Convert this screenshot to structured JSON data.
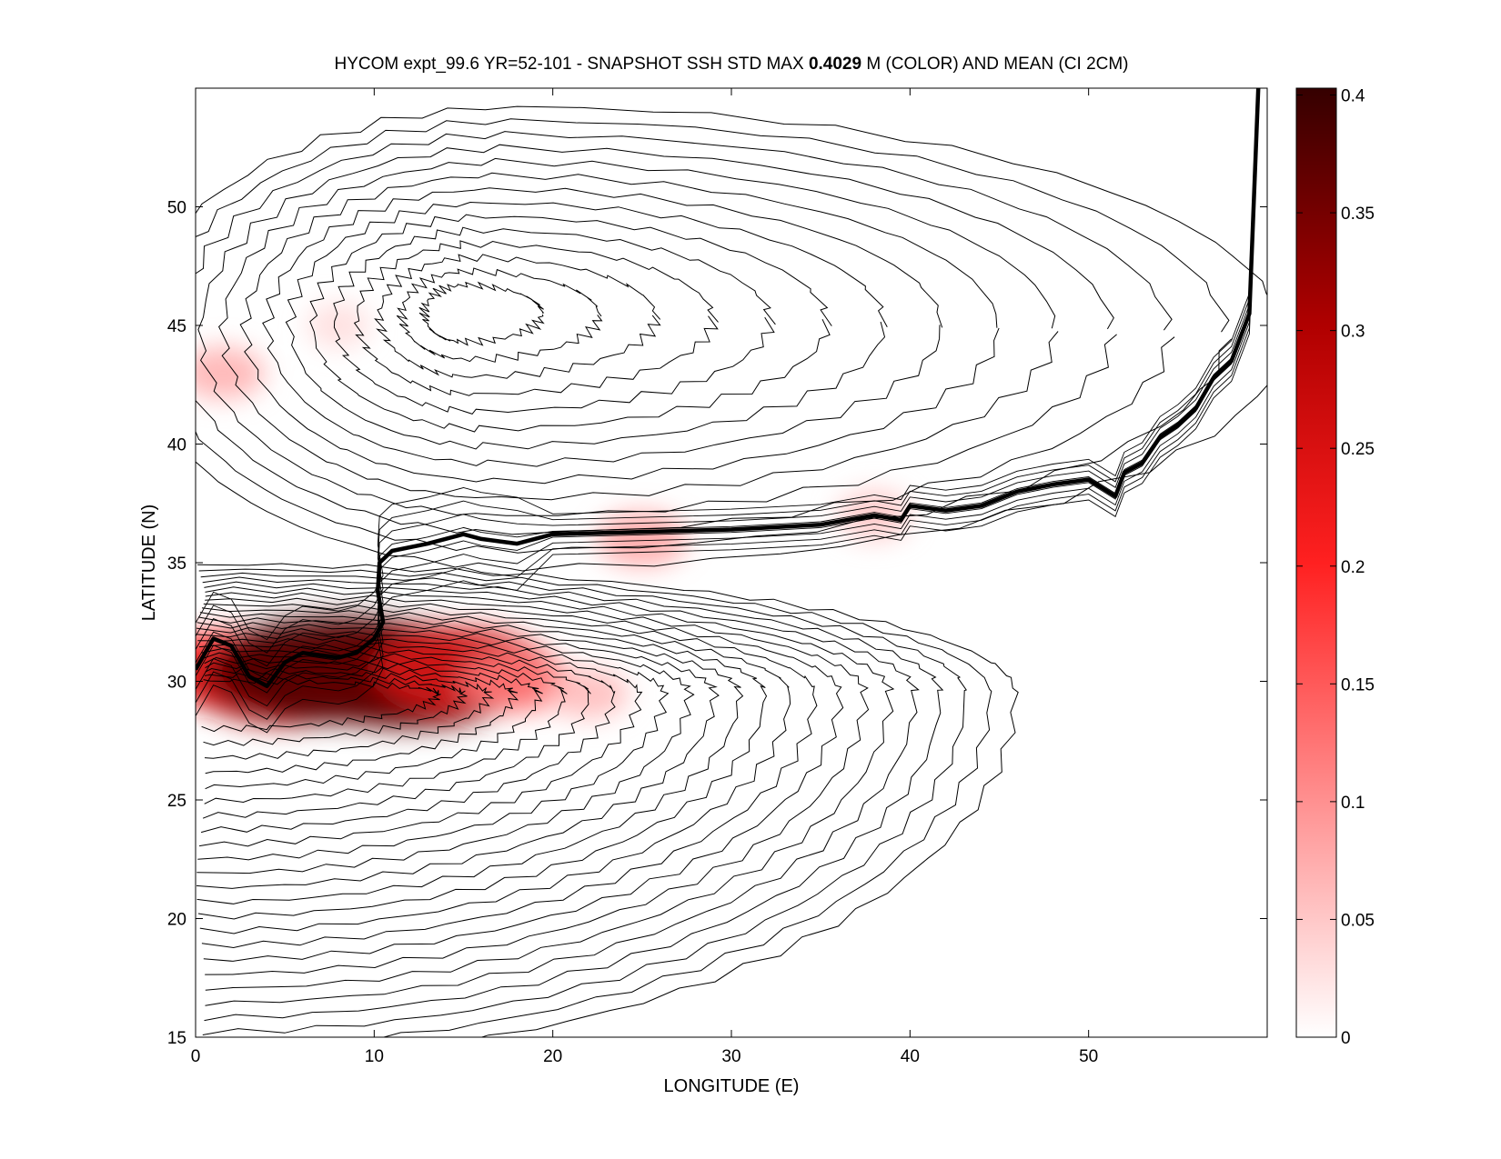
{
  "chart_data": {
    "type": "heatmap",
    "title": {
      "prefix": "HYCOM expt_99.6 YR=52-101 - SNAPSHOT SSH STD MAX ",
      "max_value": "0.4029",
      "suffix": " M (COLOR) AND MEAN (CI 2CM)"
    },
    "xlabel": "LONGITUDE (E)",
    "ylabel": "LATITUDE (N)",
    "xlim": [
      0,
      60
    ],
    "ylim": [
      15,
      55
    ],
    "xticks": [
      0,
      10,
      20,
      30,
      40,
      50
    ],
    "yticks": [
      15,
      20,
      25,
      30,
      35,
      40,
      45,
      50
    ],
    "grid": false,
    "colorbar": {
      "range": [
        0,
        0.4029
      ],
      "ticks": [
        0,
        0.05,
        0.1,
        0.15,
        0.2,
        0.25,
        0.3,
        0.35,
        0.4
      ],
      "tick_labels": [
        "0",
        "0.05",
        "0.1",
        "0.15",
        "0.2",
        "0.25",
        "0.3",
        "0.35",
        "0.4"
      ],
      "colormap": [
        "#ffffff",
        "#ff0000",
        "#3a0000"
      ]
    },
    "ssh_std_hotspots": [
      {
        "lon": 1.5,
        "lat": 30.5,
        "value": 0.2
      },
      {
        "lon": 5,
        "lat": 30,
        "value": 0.27
      },
      {
        "lon": 8,
        "lat": 30.5,
        "value": 0.38
      },
      {
        "lon": 12,
        "lat": 30.2,
        "value": 0.36
      },
      {
        "lon": 15,
        "lat": 30.5,
        "value": 0.24
      },
      {
        "lon": 18,
        "lat": 30,
        "value": 0.12
      },
      {
        "lon": 22,
        "lat": 29.5,
        "value": 0.06
      },
      {
        "lon": 1.5,
        "lat": 43,
        "value": 0.07
      },
      {
        "lon": 8,
        "lat": 45,
        "value": 0.03
      },
      {
        "lon": 25,
        "lat": 36,
        "value": 0.08
      },
      {
        "lon": 38,
        "lat": 37,
        "value": 0.05
      }
    ],
    "front_contour": {
      "lon": [
        0,
        1,
        2,
        3,
        4,
        5,
        6,
        8,
        9,
        10,
        10.5,
        10.2,
        10.3,
        11,
        13,
        15,
        16,
        18,
        20,
        25,
        30,
        35,
        38,
        39.5,
        40,
        42,
        44,
        46,
        48,
        50,
        51.5,
        52,
        53,
        54,
        55,
        56,
        57,
        58,
        58.5,
        59,
        59.5
      ],
      "lat": [
        30.5,
        31.8,
        31.5,
        30.2,
        29.8,
        30.8,
        31.2,
        31,
        31.2,
        31.8,
        32.5,
        33.8,
        35.0,
        35.5,
        35.8,
        36.2,
        36.0,
        35.8,
        36.2,
        36.3,
        36.4,
        36.6,
        37.0,
        36.8,
        37.4,
        37.2,
        37.4,
        38.0,
        38.3,
        38.5,
        37.8,
        38.8,
        39.2,
        40.3,
        40.8,
        41.5,
        42.8,
        43.5,
        44.5,
        45.5,
        55
      ]
    },
    "mean_ssh_contour_interval_cm": 2
  }
}
